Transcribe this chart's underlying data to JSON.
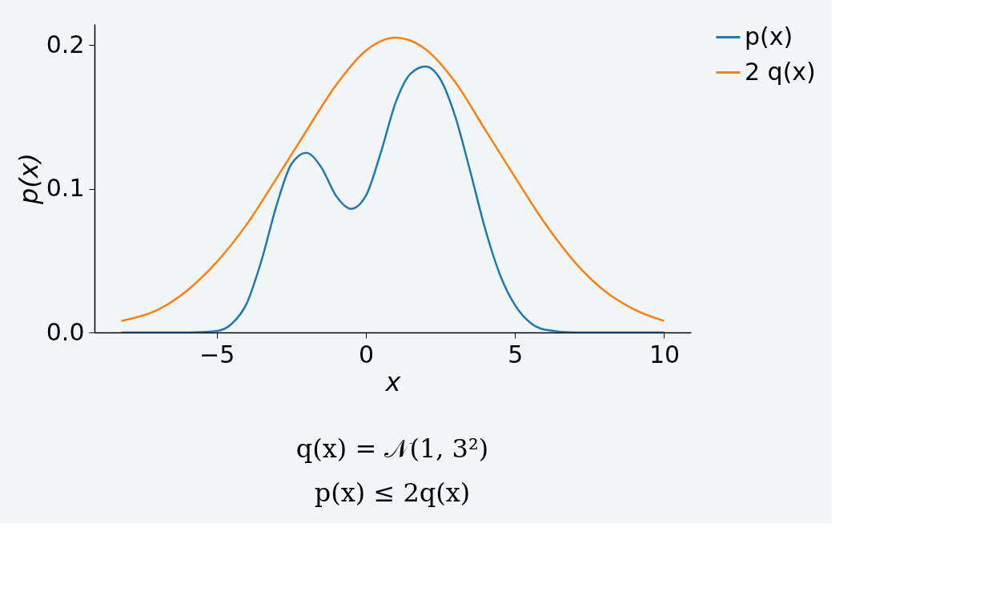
{
  "chart_data": {
    "type": "line",
    "xlabel": "x",
    "ylabel": "p(x)",
    "xlim": [
      -9.1,
      10.9
    ],
    "ylim": [
      0,
      0.2145
    ],
    "xticks": [
      {
        "value": -5,
        "label": "−5"
      },
      0,
      5,
      10
    ],
    "yticks": [
      {
        "value": 0,
        "label": "0.0"
      },
      0.1,
      0.2
    ],
    "grid": false,
    "legend": "top right",
    "marker": "none",
    "line_style": "solid",
    "series": [
      {
        "name": "p(x)",
        "color": "#1f77b4",
        "x": [
          -8.2,
          -6,
          -5,
          -4.5,
          -4,
          -3.5,
          -3,
          -2.5,
          -2,
          -1.5,
          -1,
          -0.5,
          0,
          0.5,
          1,
          1.5,
          2,
          2.5,
          3,
          3.5,
          4,
          4.5,
          5,
          5.5,
          6,
          7,
          8,
          10
        ],
        "values": [
          0,
          0,
          0.001,
          0.006,
          0.02,
          0.05,
          0.088,
          0.117,
          0.125,
          0.115,
          0.095,
          0.086,
          0.095,
          0.125,
          0.16,
          0.18,
          0.185,
          0.176,
          0.15,
          0.112,
          0.072,
          0.04,
          0.019,
          0.007,
          0.002,
          0,
          0,
          0
        ]
      },
      {
        "name": "2 q(x)",
        "color": "#ff7f0e",
        "x": [
          -8.2,
          -7,
          -6,
          -5,
          -4,
          -3,
          -2,
          -1,
          0,
          1,
          2,
          3,
          4,
          5,
          6,
          7,
          8,
          9,
          10
        ],
        "values": [
          0.008,
          0.0155,
          0.029,
          0.049,
          0.075,
          0.107,
          0.14,
          0.172,
          0.196,
          0.205,
          0.197,
          0.174,
          0.141,
          0.108,
          0.076,
          0.049,
          0.029,
          0.016,
          0.008
        ]
      }
    ],
    "annotations": [
      "q(x) = 𝒩(1, 3²)",
      "p(x) ≤ 2q(x)"
    ]
  }
}
